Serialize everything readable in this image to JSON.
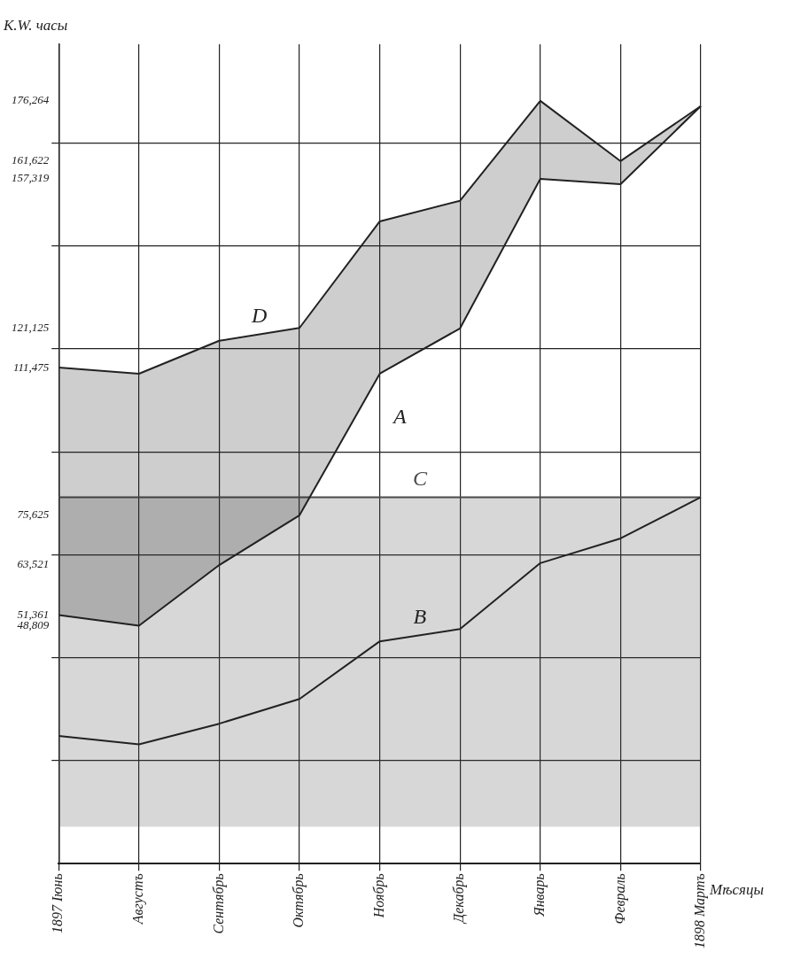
{
  "chart_data": {
    "type": "line",
    "xlabel": "Мѣсяцы",
    "ylabel": "К.W. часы",
    "categories": [
      "1897 Іюнь",
      "Августъ",
      "Сентябрь",
      "Октябрь",
      "Ноябрь",
      "Декабрь",
      "Январь",
      "Февраль",
      "1898 Мартъ"
    ],
    "series": [
      {
        "name": "D",
        "type": "area",
        "color": "#222222",
        "values": [
          111475,
          110000,
          118000,
          121125,
          147000,
          152000,
          176264,
          161622,
          175000
        ]
      },
      {
        "name": "A",
        "type": "line",
        "color": "#222222",
        "values": [
          51361,
          48809,
          63521,
          75625,
          110000,
          121000,
          157319,
          156000,
          175000
        ]
      },
      {
        "name": "B",
        "type": "line",
        "color": "#222222",
        "values": [
          22000,
          20000,
          25000,
          31000,
          45000,
          48000,
          64000,
          70000,
          80000
        ]
      },
      {
        "name": "C",
        "type": "area",
        "color": "#4a4a4a",
        "values": [
          80000,
          80000,
          80000,
          80000,
          80000,
          80000,
          80000,
          80000,
          80000
        ]
      }
    ],
    "ylim": [
      -9000,
      190000
    ],
    "yticks": [
      {
        "value": 16000,
        "label": null
      },
      {
        "value": 41000,
        "label": null
      },
      {
        "value": 48809,
        "label": "48,809"
      },
      {
        "value": 51361,
        "label": "51,361"
      },
      {
        "value": 63521,
        "label": "63,521"
      },
      {
        "value": 66000,
        "label": null
      },
      {
        "value": 75625,
        "label": "75,625"
      },
      {
        "value": 91000,
        "label": null
      },
      {
        "value": 111475,
        "label": "111,475"
      },
      {
        "value": 116000,
        "label": null
      },
      {
        "value": 121125,
        "label": "121,125"
      },
      {
        "value": 141000,
        "label": null
      },
      {
        "value": 157319,
        "label": "157,319"
      },
      {
        "value": 161622,
        "label": "161,622"
      },
      {
        "value": 166000,
        "label": null
      },
      {
        "value": 176264,
        "label": "176,264"
      }
    ],
    "grid": true,
    "legend": false,
    "marker": "none"
  }
}
